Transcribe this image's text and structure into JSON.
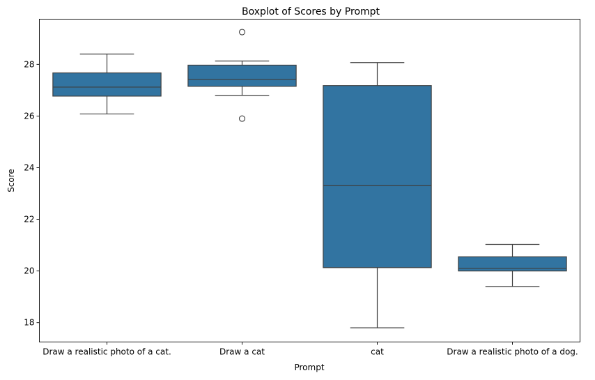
{
  "chart_data": {
    "type": "boxplot",
    "title": "Boxplot of Scores by Prompt",
    "xlabel": "Prompt",
    "ylabel": "Score",
    "ylim": [
      17.25,
      29.75
    ],
    "yticks": [
      18,
      20,
      22,
      24,
      26,
      28
    ],
    "grid": false,
    "box_color": "#3274a1",
    "line_color": "#3f3f3f",
    "categories": [
      "Draw a realistic photo of a cat.",
      "Draw a cat",
      "cat",
      "Draw a realistic photo of a dog."
    ],
    "boxes": [
      {
        "whisker_low": 26.08,
        "q1": 26.77,
        "median": 27.12,
        "q3": 27.67,
        "whisker_high": 28.4,
        "outliers": []
      },
      {
        "whisker_low": 26.8,
        "q1": 27.15,
        "median": 27.42,
        "q3": 27.97,
        "whisker_high": 28.13,
        "outliers": [
          29.25,
          25.9
        ]
      },
      {
        "whisker_low": 17.8,
        "q1": 20.13,
        "median": 23.3,
        "q3": 27.18,
        "whisker_high": 28.07,
        "outliers": []
      },
      {
        "whisker_low": 19.4,
        "q1": 20.0,
        "median": 20.1,
        "q3": 20.55,
        "whisker_high": 21.03,
        "outliers": []
      }
    ]
  }
}
